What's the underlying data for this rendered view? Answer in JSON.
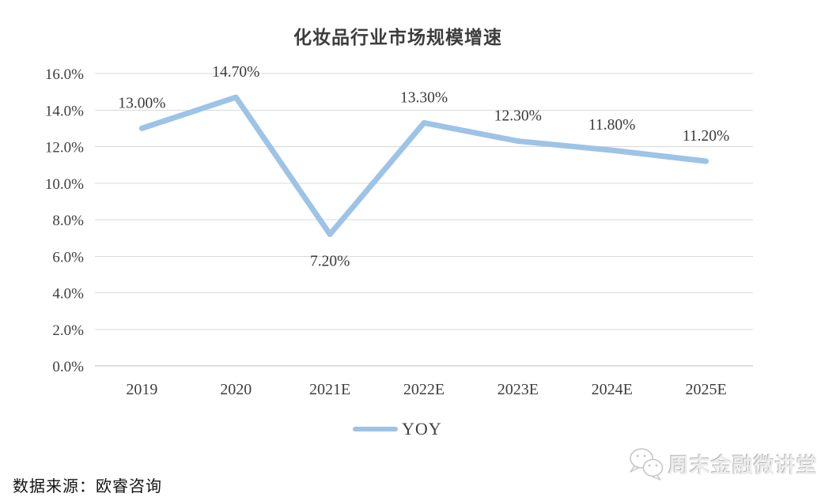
{
  "title": "化妆品行业市场规模增速",
  "source_note": "数据来源：欧睿咨询",
  "legend": {
    "label": "YOY"
  },
  "watermark": {
    "text": "周末金融微讲堂",
    "icon": "wechat-icon"
  },
  "colors": {
    "line": "#9DC3E6",
    "gridline": "#D9D9D9",
    "axis": "#BFBFBF",
    "tick_text": "#3F3F3F",
    "data_label_text": "#3A3A3A",
    "watermark_gray": "#C6C6C6"
  },
  "chart_data": {
    "type": "line",
    "title": "化妆品行业市场规模增速",
    "categories": [
      "2019",
      "2020",
      "2021E",
      "2022E",
      "2023E",
      "2024E",
      "2025E"
    ],
    "series": [
      {
        "name": "YOY",
        "values": [
          13.0,
          14.7,
          7.2,
          13.3,
          12.3,
          11.8,
          11.2
        ]
      }
    ],
    "data_labels": [
      "13.00%",
      "14.70%",
      "7.20%",
      "13.30%",
      "12.30%",
      "11.80%",
      "11.20%"
    ],
    "label_positions": [
      "above",
      "above",
      "below",
      "above",
      "above",
      "above",
      "above"
    ],
    "y_ticks": [
      "16.0%",
      "14.0%",
      "12.0%",
      "10.0%",
      "8.0%",
      "6.0%",
      "4.0%",
      "2.0%",
      "0.0%"
    ],
    "xlabel": "",
    "ylabel": "",
    "ylim": [
      0,
      16
    ],
    "grid": true,
    "legend_position": "bottom"
  }
}
